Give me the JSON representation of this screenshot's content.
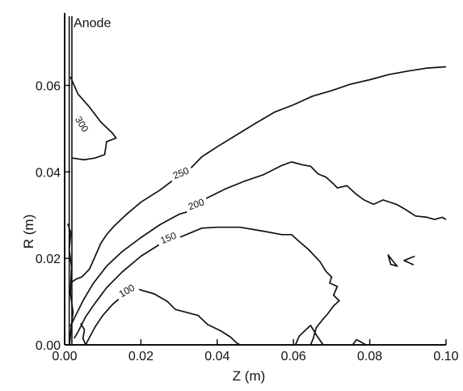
{
  "chart_data": {
    "type": "line",
    "title": "",
    "xlabel": "Z (m)",
    "ylabel": "R (m)",
    "xlim": [
      0.0,
      0.1
    ],
    "ylim": [
      0.0,
      0.076
    ],
    "xticks": [
      "0.00",
      "0.02",
      "0.04",
      "0.06",
      "0.08",
      "0.10"
    ],
    "xtick_values": [
      0.0,
      0.02,
      0.04,
      0.06,
      0.08,
      0.1
    ],
    "yticks": [
      "0.00",
      "0.02",
      "0.04",
      "0.06"
    ],
    "ytick_values": [
      0.0,
      0.02,
      0.04,
      0.06
    ],
    "grid": false,
    "line_color": "#111111",
    "annotations": [
      {
        "text": "Anode",
        "x": 0.0015,
        "y": 0.0735
      }
    ],
    "series": [
      {
        "label": "300",
        "label_pos": [
          0.0045,
          0.051
        ],
        "label_rotation": 58,
        "points": [
          [
            0.0015,
            0.062
          ],
          [
            0.0035,
            0.058
          ],
          [
            0.0065,
            0.055
          ],
          [
            0.0095,
            0.0515
          ],
          [
            0.0125,
            0.049
          ],
          [
            0.0135,
            0.0478
          ],
          [
            0.011,
            0.047
          ],
          [
            0.0105,
            0.044
          ],
          [
            0.008,
            0.0432
          ],
          [
            0.005,
            0.0428
          ],
          [
            0.002,
            0.0432
          ]
        ]
      },
      {
        "label": "250",
        "label_pos": [
          0.0305,
          0.0397
        ],
        "label_rotation": -22,
        "points": [
          [
            0.0015,
            0.0143
          ],
          [
            0.003,
            0.0152
          ],
          [
            0.0045,
            0.0157
          ],
          [
            0.0065,
            0.0175
          ],
          [
            0.008,
            0.0205
          ],
          [
            0.0095,
            0.0235
          ],
          [
            0.011,
            0.0255
          ],
          [
            0.013,
            0.0275
          ],
          [
            0.016,
            0.03
          ],
          [
            0.02,
            0.033
          ],
          [
            0.025,
            0.0358
          ],
          [
            0.028,
            0.0378
          ],
          [
            0.033,
            0.0408
          ],
          [
            0.036,
            0.0435
          ],
          [
            0.04,
            0.0458
          ],
          [
            0.045,
            0.0485
          ],
          [
            0.05,
            0.0512
          ],
          [
            0.055,
            0.0538
          ],
          [
            0.06,
            0.0555
          ],
          [
            0.065,
            0.0575
          ],
          [
            0.07,
            0.0588
          ],
          [
            0.075,
            0.0603
          ],
          [
            0.08,
            0.0613
          ],
          [
            0.085,
            0.0625
          ],
          [
            0.09,
            0.0633
          ],
          [
            0.095,
            0.064
          ],
          [
            0.1,
            0.0643
          ]
        ]
      },
      {
        "label": "200",
        "label_pos": [
          0.0345,
          0.0325
        ],
        "label_rotation": -20,
        "points": [
          [
            0.0015,
            0.0043
          ],
          [
            0.003,
            0.007
          ],
          [
            0.005,
            0.0105
          ],
          [
            0.0075,
            0.0142
          ],
          [
            0.011,
            0.0182
          ],
          [
            0.015,
            0.0215
          ],
          [
            0.02,
            0.0248
          ],
          [
            0.025,
            0.0278
          ],
          [
            0.03,
            0.0302
          ],
          [
            0.033,
            0.031
          ],
          [
            0.037,
            0.0338
          ],
          [
            0.042,
            0.036
          ],
          [
            0.047,
            0.0378
          ],
          [
            0.052,
            0.0393
          ],
          [
            0.057,
            0.0415
          ],
          [
            0.0595,
            0.0423
          ],
          [
            0.062,
            0.0417
          ],
          [
            0.0645,
            0.0413
          ],
          [
            0.0665,
            0.0395
          ],
          [
            0.0685,
            0.0388
          ],
          [
            0.0705,
            0.0372
          ],
          [
            0.0715,
            0.0363
          ],
          [
            0.074,
            0.0368
          ],
          [
            0.0765,
            0.0348
          ],
          [
            0.0785,
            0.0335
          ],
          [
            0.081,
            0.0325
          ],
          [
            0.0835,
            0.0335
          ],
          [
            0.087,
            0.0325
          ],
          [
            0.089,
            0.0315
          ],
          [
            0.092,
            0.0298
          ],
          [
            0.095,
            0.0295
          ],
          [
            0.097,
            0.029
          ],
          [
            0.099,
            0.0295
          ],
          [
            0.1,
            0.029
          ]
        ]
      },
      {
        "label": "150",
        "label_pos": [
          0.0272,
          0.0247
        ],
        "label_rotation": -22,
        "points": [
          [
            0.0025,
            0.0015
          ],
          [
            0.0035,
            0.003
          ],
          [
            0.0055,
            0.0065
          ],
          [
            0.008,
            0.0097
          ],
          [
            0.011,
            0.0132
          ],
          [
            0.015,
            0.0168
          ],
          [
            0.02,
            0.0205
          ],
          [
            0.0245,
            0.023
          ],
          [
            0.03,
            0.0248
          ],
          [
            0.036,
            0.027
          ],
          [
            0.04,
            0.0272
          ],
          [
            0.046,
            0.0272
          ],
          [
            0.052,
            0.0263
          ],
          [
            0.057,
            0.0255
          ],
          [
            0.0595,
            0.0255
          ],
          [
            0.061,
            0.0243
          ],
          [
            0.064,
            0.022
          ],
          [
            0.067,
            0.0192
          ],
          [
            0.0685,
            0.017
          ],
          [
            0.07,
            0.0157
          ],
          [
            0.0695,
            0.0143
          ],
          [
            0.0715,
            0.0135
          ],
          [
            0.0705,
            0.0115
          ],
          [
            0.072,
            0.0102
          ],
          [
            0.0705,
            0.009
          ],
          [
            0.069,
            0.0072
          ],
          [
            0.0675,
            0.0057
          ],
          [
            0.066,
            0.004
          ],
          [
            0.0652,
            0.0015
          ],
          [
            0.0645,
            0.0
          ]
        ]
      },
      {
        "label": "100",
        "label_pos": [
          0.0163,
          0.0125
        ],
        "label_rotation": -30,
        "points": [
          [
            0.0055,
            0.0
          ],
          [
            0.0065,
            0.0017
          ],
          [
            0.008,
            0.0042
          ],
          [
            0.01,
            0.0068
          ],
          [
            0.0125,
            0.0093
          ],
          [
            0.015,
            0.0112
          ],
          [
            0.0195,
            0.0128
          ],
          [
            0.0235,
            0.0118
          ],
          [
            0.027,
            0.01
          ],
          [
            0.029,
            0.0082
          ],
          [
            0.032,
            0.0075
          ],
          [
            0.035,
            0.0068
          ],
          [
            0.0375,
            0.0047
          ],
          [
            0.041,
            0.0032
          ],
          [
            0.0435,
            0.0018
          ],
          [
            0.045,
            0.0005
          ],
          [
            0.046,
            0.0
          ]
        ]
      },
      {
        "label": "",
        "points": [
          [
            0.0055,
            0.0
          ],
          [
            0.0048,
            0.0015
          ],
          [
            0.0052,
            0.0035
          ],
          [
            0.0042,
            0.005
          ]
        ]
      },
      {
        "label": "",
        "points": [
          [
            0.0013,
            0.0
          ],
          [
            0.0017,
            0.004
          ],
          [
            0.0022,
            0.0075
          ],
          [
            0.0015,
            0.012
          ],
          [
            0.0018,
            0.018
          ],
          [
            0.0012,
            0.022
          ],
          [
            0.0016,
            0.026
          ],
          [
            0.0008,
            0.028
          ]
        ]
      },
      {
        "label": "",
        "points": [
          [
            0.0605,
            0.0
          ],
          [
            0.0615,
            0.002
          ],
          [
            0.063,
            0.0033
          ],
          [
            0.0645,
            0.0045
          ],
          [
            0.0662,
            0.002
          ],
          [
            0.0678,
            0.0
          ]
        ]
      },
      {
        "label": "",
        "points": [
          [
            0.0755,
            0.0
          ],
          [
            0.0765,
            0.0012
          ],
          [
            0.078,
            0.0005
          ],
          [
            0.079,
            0.0
          ]
        ]
      },
      {
        "label": "",
        "closed": true,
        "points": [
          [
            0.0848,
            0.0208
          ],
          [
            0.0862,
            0.0192
          ],
          [
            0.0872,
            0.0182
          ],
          [
            0.0855,
            0.0186
          ],
          [
            0.0848,
            0.0208
          ]
        ]
      },
      {
        "label": "",
        "points": [
          [
            0.0918,
            0.0205
          ],
          [
            0.089,
            0.0195
          ],
          [
            0.0915,
            0.0185
          ]
        ]
      }
    ]
  }
}
